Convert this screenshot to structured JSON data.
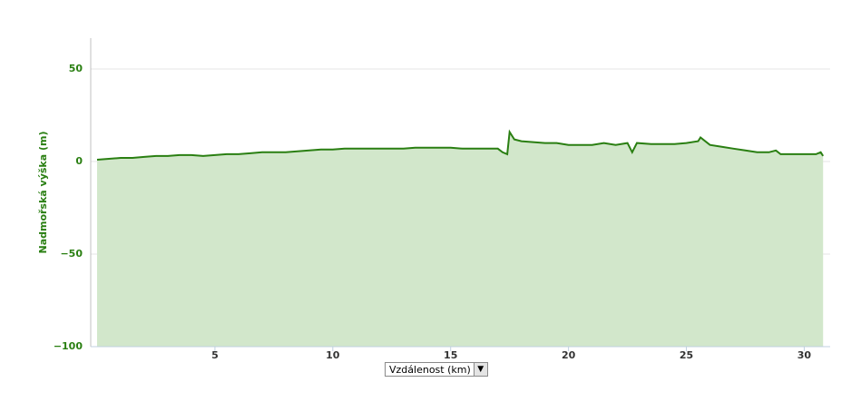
{
  "chart_data": {
    "type": "area",
    "y_label": "Nadmořská výška (m)",
    "x_label": "Vzdálenost (km)",
    "x": [
      0,
      0.5,
      1,
      1.5,
      2,
      2.5,
      3,
      3.5,
      4,
      4.5,
      5,
      5.5,
      6,
      6.5,
      7,
      7.5,
      8,
      8.5,
      9,
      9.5,
      10,
      10.5,
      11,
      11.5,
      12,
      12.5,
      13,
      13.5,
      14,
      14.5,
      15,
      15.5,
      16,
      16.5,
      17,
      17.2,
      17.4,
      17.5,
      17.7,
      18,
      18.5,
      19,
      19.5,
      20,
      20.5,
      21,
      21.5,
      22,
      22.5,
      22.7,
      22.9,
      23.5,
      24,
      24.5,
      25,
      25.5,
      25.6,
      26,
      26.5,
      27,
      27.5,
      28,
      28.5,
      28.8,
      29,
      29.5,
      30,
      30.5,
      30.7,
      30.8
    ],
    "series": [
      {
        "name": "Nadmořská výška",
        "color": "#2a7f12",
        "fill": "#d2e7cb",
        "values": [
          1,
          1.5,
          2,
          2,
          2.5,
          3,
          3,
          3.5,
          3.5,
          3,
          3.5,
          4,
          4,
          4.5,
          5,
          5,
          5,
          5.5,
          6,
          6.5,
          6.5,
          7,
          7,
          7,
          7,
          7,
          7,
          7.5,
          7.5,
          7.5,
          7.5,
          7,
          7,
          7,
          7,
          5,
          4,
          16,
          12,
          11,
          10.5,
          10,
          10,
          9,
          9,
          9,
          10,
          9,
          10,
          5,
          10,
          9.5,
          9.5,
          9.5,
          10,
          11,
          13,
          9,
          8,
          7,
          6,
          5,
          5,
          6,
          4,
          4,
          4,
          4,
          5,
          3
        ]
      }
    ],
    "xlim": [
      -0.27,
      31.1
    ],
    "ylim": [
      -100,
      66.7
    ],
    "xticks": [
      5,
      10,
      15,
      20,
      25,
      30
    ],
    "yticks": [
      {
        "value": -100,
        "label": "−100"
      },
      {
        "value": -50,
        "label": "−50"
      },
      0,
      50
    ],
    "grid": true
  }
}
